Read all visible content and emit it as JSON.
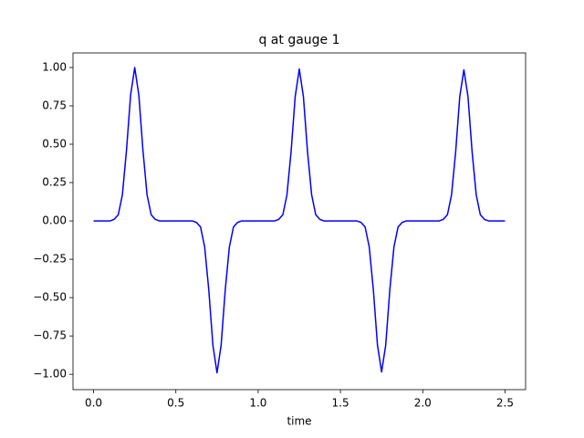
{
  "chart_data": {
    "type": "line",
    "title": "q at gauge 1",
    "x_label": "time",
    "x": [
      0,
      0.025,
      0.05,
      0.075,
      0.1,
      0.125,
      0.15,
      0.175,
      0.2,
      0.225,
      0.25,
      0.275,
      0.3,
      0.325,
      0.35,
      0.375,
      0.4,
      0.425,
      0.45,
      0.475,
      0.5,
      0.525,
      0.55,
      0.575,
      0.6,
      0.625,
      0.65,
      0.675,
      0.7,
      0.725,
      0.75,
      0.775,
      0.8,
      0.825,
      0.85,
      0.875,
      0.9,
      0.925,
      0.95,
      0.975,
      1,
      1.025,
      1.05,
      1.075,
      1.1,
      1.125,
      1.15,
      1.175,
      1.2,
      1.225,
      1.25,
      1.275,
      1.3,
      1.325,
      1.35,
      1.375,
      1.4,
      1.425,
      1.45,
      1.475,
      1.5,
      1.525,
      1.55,
      1.575,
      1.6,
      1.625,
      1.65,
      1.675,
      1.7,
      1.725,
      1.75,
      1.775,
      1.8,
      1.825,
      1.85,
      1.875,
      1.9,
      1.925,
      1.95,
      1.975,
      2,
      2.025,
      2.05,
      2.075,
      2.1,
      2.125,
      2.15,
      2.175,
      2.2,
      2.225,
      2.25,
      2.275,
      2.3,
      2.325,
      2.35,
      2.375,
      2.4,
      2.425,
      2.45,
      2.475,
      2.5
    ],
    "series": [
      {
        "name": "q",
        "color": "#0000ff",
        "values": [
          0,
          0,
          0,
          0,
          0,
          0.01,
          0.04,
          0.17,
          0.46,
          0.82,
          1,
          0.82,
          0.46,
          0.17,
          0.04,
          0.01,
          0,
          0,
          0,
          0,
          0,
          0,
          0,
          0,
          0,
          -0.01,
          -0.04,
          -0.17,
          -0.45,
          -0.81,
          -0.99,
          -0.81,
          -0.45,
          -0.17,
          -0.04,
          -0.01,
          0,
          0,
          0,
          0,
          0,
          0,
          0,
          0,
          0,
          0.01,
          0.04,
          0.17,
          0.45,
          0.81,
          0.99,
          0.81,
          0.45,
          0.17,
          0.04,
          0.01,
          0,
          0,
          0,
          0,
          0,
          0,
          0,
          0,
          0,
          -0.01,
          -0.04,
          -0.17,
          -0.45,
          -0.81,
          -0.985,
          -0.81,
          -0.45,
          -0.17,
          -0.04,
          -0.01,
          0,
          0,
          0,
          0,
          0,
          0,
          0,
          0,
          0,
          0.01,
          0.04,
          0.17,
          0.45,
          0.81,
          0.985,
          0.81,
          0.45,
          0.17,
          0.04,
          0.01,
          0,
          0,
          0,
          0,
          0
        ]
      }
    ],
    "xlim": [
      -0.125,
      2.625
    ],
    "ylim": [
      -1.1,
      1.095
    ],
    "xticks": [
      {
        "value": 0,
        "label": "0.0"
      },
      0.5,
      {
        "value": 1,
        "label": "1.0"
      },
      1.5,
      {
        "value": 2,
        "label": "2.0"
      },
      2.5
    ],
    "yticks": [
      {
        "value": -1,
        "label": "−1.00"
      },
      {
        "value": -0.75,
        "label": "−0.75"
      },
      {
        "value": -0.5,
        "label": "−0.50"
      },
      {
        "value": -0.25,
        "label": "−0.25"
      },
      {
        "value": 0,
        "label": "0.00"
      },
      {
        "value": 0.25,
        "label": "0.25"
      },
      {
        "value": 0.5,
        "label": "0.50"
      },
      {
        "value": 0.75,
        "label": "0.75"
      },
      {
        "value": 1,
        "label": "1.00"
      }
    ],
    "grid": false
  }
}
